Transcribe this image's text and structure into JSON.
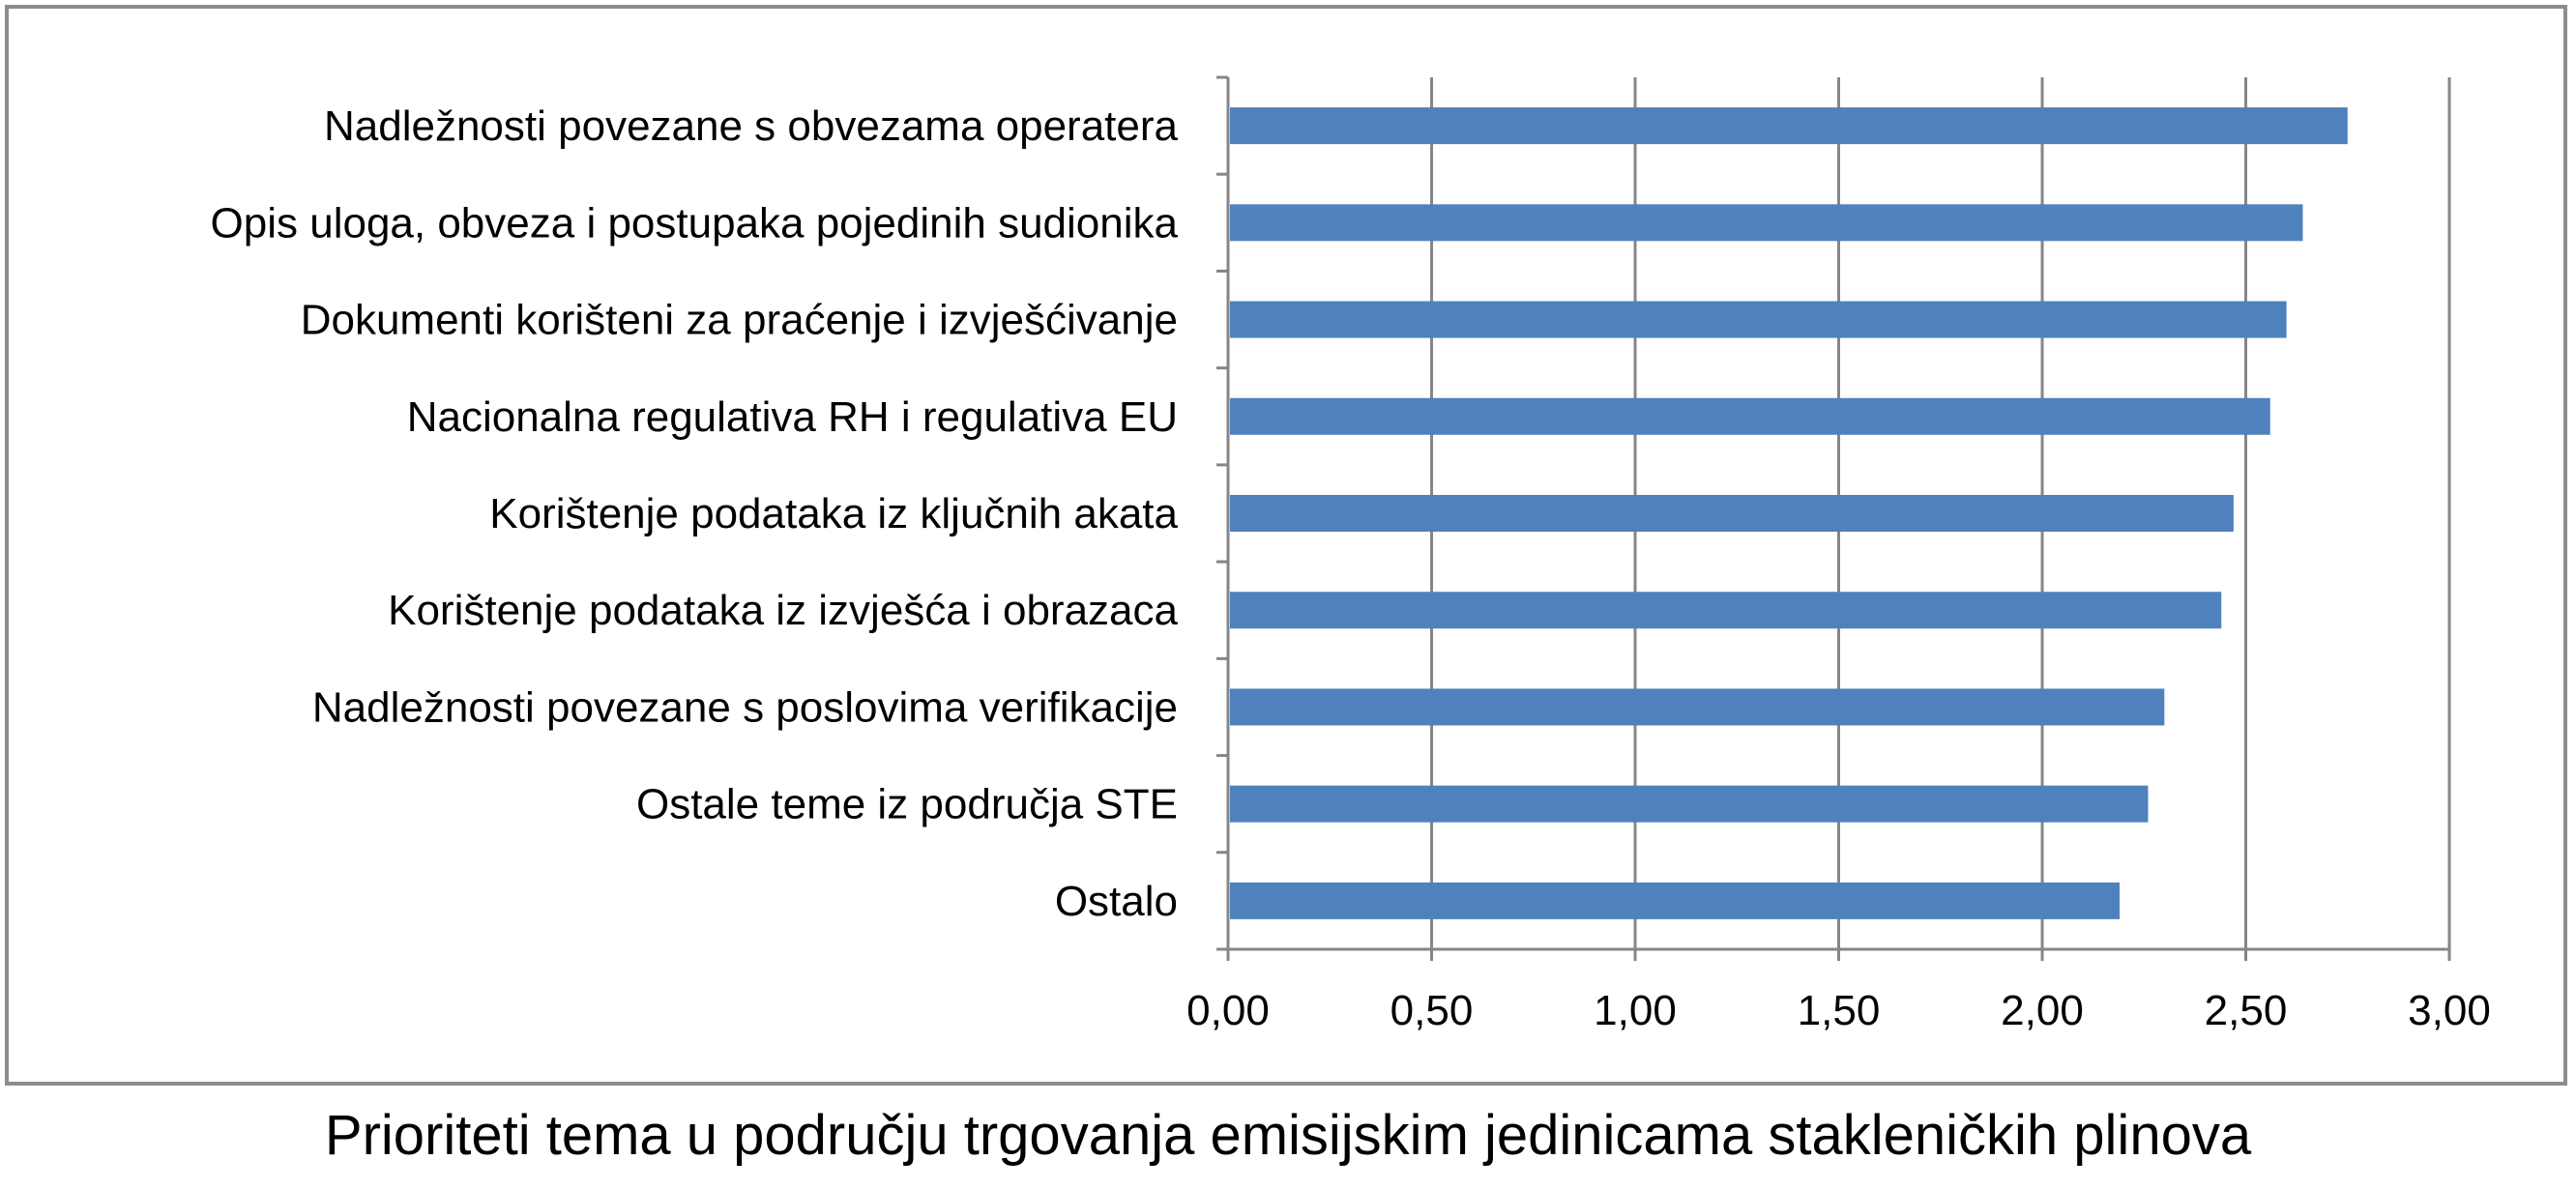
{
  "chart_data": {
    "type": "bar",
    "orientation": "horizontal",
    "title": "Prioriteti tema u području trgovanja emisijskim jedinicama stakleničkih plinova",
    "categories": [
      "Nadležnosti povezane s obvezama operatera",
      "Opis uloga, obveza i postupaka pojedinih sudionika",
      "Dokumenti korišteni za praćenje i izvješćivanje",
      "Nacionalna regulativa RH i regulativa EU",
      "Korištenje podataka iz ključnih akata",
      "Korištenje podataka iz izvješća i obrazaca",
      "Nadležnosti povezane s poslovima verifikacije",
      "Ostale teme iz područja STE",
      "Ostalo"
    ],
    "values": [
      2.75,
      2.64,
      2.6,
      2.56,
      2.47,
      2.44,
      2.3,
      2.26,
      2.19
    ],
    "xlim": [
      0,
      3
    ],
    "xticks": [
      "0,00",
      "0,50",
      "1,00",
      "1,50",
      "2,00",
      "2,50",
      "3,00"
    ],
    "xtick_values": [
      0,
      0.5,
      1,
      1.5,
      2,
      2.5,
      3
    ],
    "grid": "vertical",
    "legend": "none",
    "colors": {
      "bar": "#4f81bd",
      "grid": "#868686",
      "axis": "#868686",
      "frame": "#8c8c8c"
    }
  }
}
